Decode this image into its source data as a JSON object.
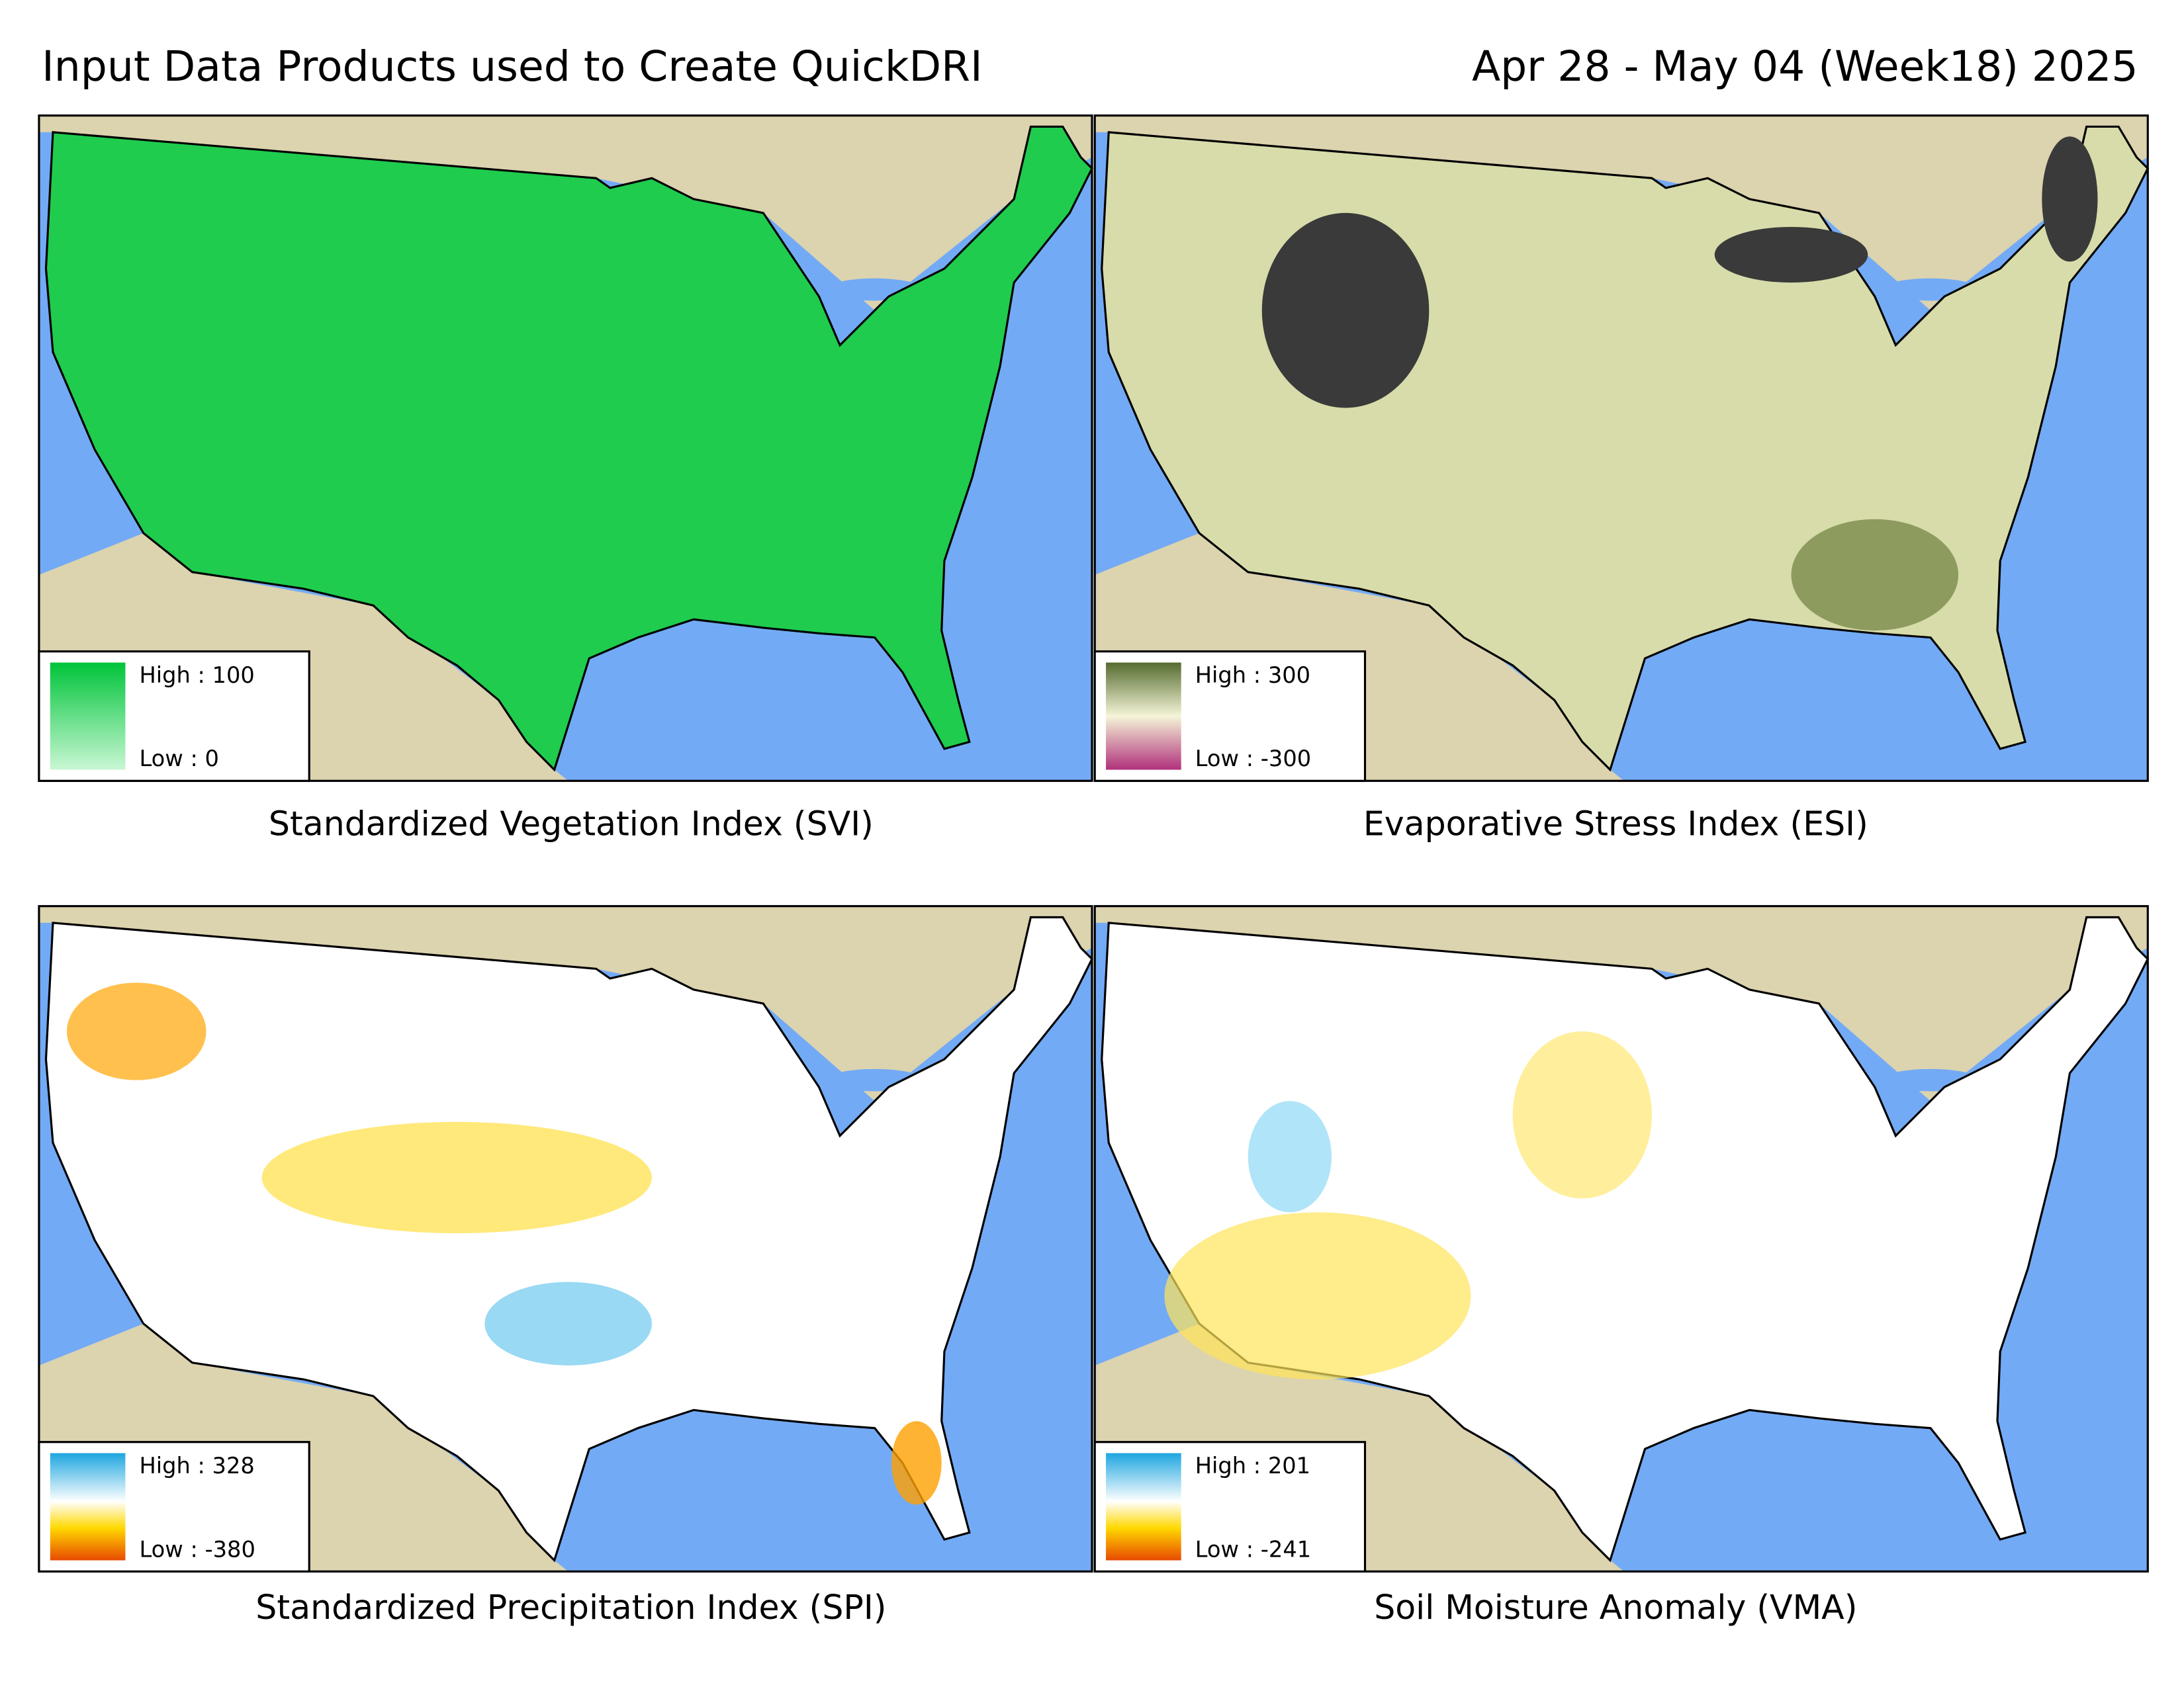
{
  "header": {
    "title": "Input Data Products used to Create QuickDRI",
    "date": "Apr 28 - May 04 (Week18) 2025"
  },
  "panels": [
    {
      "title": "Standardized Vegetation Index (SVI)",
      "legend": {
        "high": "High : 100",
        "low": "Low : 0"
      }
    },
    {
      "title": "Evaporative Stress Index (ESI)",
      "legend": {
        "high": "High : 300",
        "low": "Low : -300"
      }
    },
    {
      "title": "Standardized Precipitation Index (SPI)",
      "legend": {
        "high": "High : 328",
        "low": "Low : -380"
      }
    },
    {
      "title": "Soil Moisture Anomaly (VMA)",
      "legend": {
        "high": "High : 201",
        "low": "Low : -241"
      }
    }
  ]
}
